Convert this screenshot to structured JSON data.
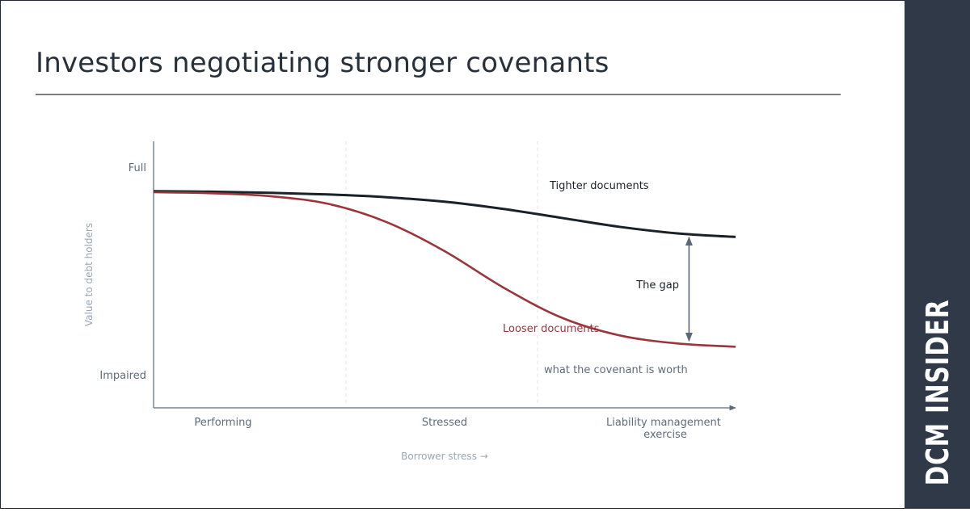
{
  "page": {
    "title": "Investors negotiating stronger covenants",
    "brand": "DCM INSIDER"
  },
  "colors": {
    "tighter": "#1b2129",
    "looser": "#9b353b",
    "axis": "#5e6b7a",
    "gap_arrow": "#5a6878",
    "sidebar": "#2f3947"
  },
  "chart_data": {
    "type": "line",
    "xlabel": "Borrower stress →",
    "ylabel": "Value to debt holders",
    "x_categories": [
      "Performing",
      "Stressed",
      "Liability management exercise"
    ],
    "y_ticks": [
      "Impaired",
      "Full"
    ],
    "xlim": [
      0,
      1
    ],
    "ylim": [
      0,
      1
    ],
    "grid": "dashed vertical separators between stress phases",
    "series": [
      {
        "name": "Tighter documents",
        "color": "#1b2129",
        "x": [
          0,
          0.1,
          0.2,
          0.3,
          0.4,
          0.5,
          0.6,
          0.7,
          0.8,
          0.9,
          1.0
        ],
        "y": [
          0.885,
          0.882,
          0.877,
          0.869,
          0.856,
          0.834,
          0.8,
          0.757,
          0.714,
          0.682,
          0.665
        ]
      },
      {
        "name": "Looser documents",
        "color": "#9b353b",
        "x": [
          0,
          0.1,
          0.2,
          0.3,
          0.4,
          0.5,
          0.6,
          0.7,
          0.8,
          0.9,
          1.0
        ],
        "y": [
          0.88,
          0.875,
          0.861,
          0.824,
          0.737,
          0.597,
          0.424,
          0.279,
          0.193,
          0.154,
          0.138
        ]
      }
    ],
    "annotations": {
      "gap_label": "The gap",
      "gap_caption": "what the covenant is worth",
      "gap_x": 0.92
    }
  }
}
